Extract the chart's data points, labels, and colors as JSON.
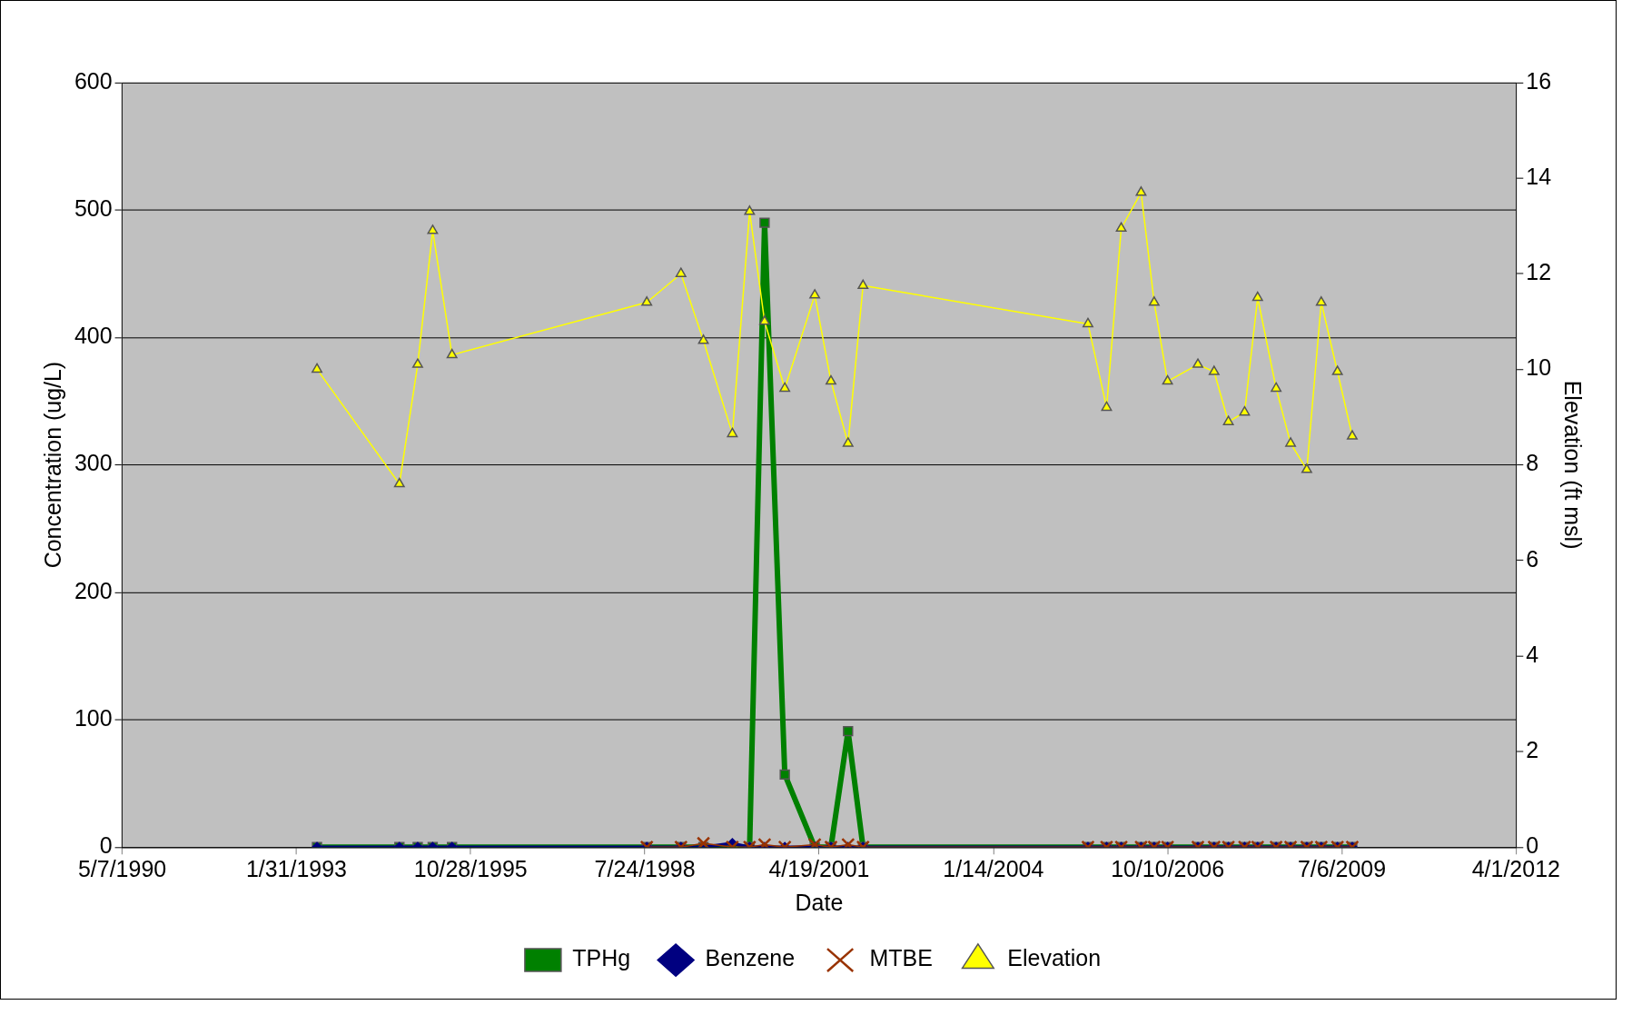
{
  "chart_data": {
    "type": "line",
    "xlabel": "Date",
    "ylabel": "Concentration (ug/L)",
    "y2label": "Elevation (ft msl)",
    "x": [
      "1993-05-29",
      "1994-09-14",
      "1994-12-28",
      "1995-03-24",
      "1995-07-13",
      "1998-08-04",
      "1999-02-16",
      "1999-06-25",
      "1999-12-08",
      "2000-03-16",
      "2000-06-10",
      "2000-10-04",
      "2001-03-25",
      "2001-06-26",
      "2001-10-02",
      "2001-12-27",
      "2005-07-10",
      "2005-10-25",
      "2006-01-17",
      "2006-05-11",
      "2006-07-25",
      "2006-10-10",
      "2007-04-02",
      "2007-07-04",
      "2007-09-24",
      "2007-12-26",
      "2008-03-10",
      "2008-06-24",
      "2008-09-15",
      "2008-12-17",
      "2009-03-10",
      "2009-06-11",
      "2009-09-04"
    ],
    "series": [
      {
        "name": "TPHg",
        "color": "#008000",
        "marker": "square",
        "values": [
          0,
          0,
          0,
          0,
          0,
          0,
          0,
          0,
          0,
          0,
          490,
          57,
          0,
          0,
          91,
          0,
          0,
          0,
          0,
          0,
          0,
          0,
          0,
          0,
          0,
          0,
          0,
          0,
          0,
          0,
          0,
          0,
          0
        ]
      },
      {
        "name": "Benzene",
        "color": "#000080",
        "marker": "diamond",
        "values": [
          0,
          0,
          0,
          0,
          0,
          0,
          0,
          0,
          3,
          0,
          0,
          0,
          0,
          0,
          0,
          0,
          0,
          0,
          0,
          0,
          0,
          0,
          0,
          0,
          0,
          0,
          0,
          0,
          0,
          0,
          0,
          0,
          0
        ]
      },
      {
        "name": "MTBE",
        "color": "#993300",
        "marker": "cross",
        "values": [
          null,
          null,
          null,
          null,
          null,
          0,
          0,
          3,
          0,
          0,
          2,
          0,
          2,
          0,
          2,
          0,
          0,
          0,
          0,
          0,
          0,
          0,
          0,
          0,
          0,
          0,
          0,
          0,
          0,
          0,
          0,
          0,
          0
        ]
      },
      {
        "name": "Elevation",
        "color": "#ffff00",
        "marker": "triangle",
        "axis": "y2",
        "values": [
          10.0,
          7.6,
          10.1,
          12.9,
          10.3,
          11.4,
          12.0,
          10.6,
          8.65,
          13.3,
          11.0,
          9.6,
          11.55,
          9.75,
          8.45,
          11.75,
          10.95,
          9.2,
          12.95,
          13.7,
          11.4,
          9.75,
          10.1,
          9.95,
          8.9,
          9.1,
          11.5,
          9.6,
          8.45,
          7.9,
          11.4,
          9.95,
          8.6
        ]
      }
    ],
    "xlim": [
      "1990-05-07",
      "2012-04-01"
    ],
    "xticks": [
      {
        "value": "1990-05-07",
        "label": "5/7/1990"
      },
      {
        "value": "1993-01-31",
        "label": "1/31/1993"
      },
      {
        "value": "1995-10-28",
        "label": "10/28/1995"
      },
      {
        "value": "1998-07-24",
        "label": "7/24/1998"
      },
      {
        "value": "2001-04-19",
        "label": "4/19/2001"
      },
      {
        "value": "2004-01-14",
        "label": "1/14/2004"
      },
      {
        "value": "2006-10-10",
        "label": "10/10/2006"
      },
      {
        "value": "2009-07-06",
        "label": "7/6/2009"
      },
      {
        "value": "2012-04-01",
        "label": "4/1/2012"
      }
    ],
    "ylim": [
      0,
      600
    ],
    "yticks": [
      0,
      100,
      200,
      300,
      400,
      500,
      600
    ],
    "y2lim": [
      0,
      16
    ],
    "y2ticks": [
      0,
      2,
      4,
      6,
      8,
      10,
      12,
      14,
      16
    ],
    "grid": "y",
    "legend": "bottom",
    "line_style": "solid"
  }
}
